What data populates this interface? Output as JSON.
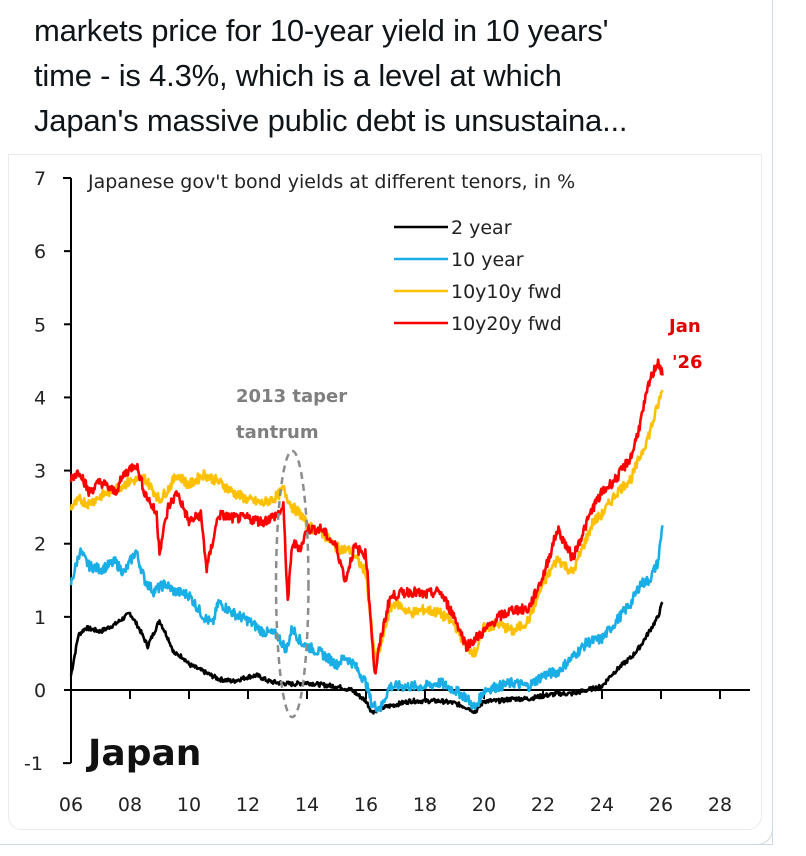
{
  "tweet": {
    "lines": [
      "markets price for 10-year yield in 10 years'",
      "time - is 4.3%, which is a level at which",
      "Japan's massive public debt is unsustaina..."
    ]
  },
  "chart_data": {
    "type": "line",
    "title": "Japanese gov't bond yields at different tenors, in %",
    "country_label": "Japan",
    "xlabel": "",
    "ylabel": "",
    "xlim": [
      2006,
      2028
    ],
    "ylim": [
      -1,
      7
    ],
    "x_ticks": [
      2006,
      2008,
      2010,
      2012,
      2014,
      2016,
      2018,
      2020,
      2022,
      2024,
      2026,
      2028
    ],
    "x_tick_labels": [
      "06",
      "08",
      "10",
      "12",
      "14",
      "16",
      "18",
      "20",
      "22",
      "24",
      "26",
      "28"
    ],
    "y_ticks": [
      -1,
      0,
      1,
      2,
      3,
      4,
      5,
      6,
      7
    ],
    "y_tick_labels": [
      "-1",
      "0",
      "1",
      "2",
      "3",
      "4",
      "5",
      "6",
      "7"
    ],
    "grid": false,
    "legend_position": "top-center",
    "annotations": [
      {
        "text": [
          "2013 taper",
          "tantrum"
        ],
        "x": 2013.5,
        "y": 3.9,
        "color": "#7f7f7f",
        "style": "dashed-ellipse",
        "ellipse_center": [
          2013.5,
          1.45
        ],
        "ellipse_radius_years": 0.55,
        "ellipse_radius_pct": 1.82
      },
      {
        "text": [
          "Jan",
          "'26"
        ],
        "x": 2026.3,
        "y": 4.6,
        "color": "#e00000"
      }
    ],
    "series": [
      {
        "name": "2 year",
        "color": "#000000",
        "x": [
          2006.0,
          2006.25,
          2006.5,
          2007.0,
          2007.5,
          2008.0,
          2008.3,
          2008.6,
          2009.0,
          2009.3,
          2009.5,
          2009.8,
          2010.0,
          2010.5,
          2011.0,
          2011.5,
          2012.0,
          2012.3,
          2012.7,
          2013.0,
          2013.5,
          2014.0,
          2014.5,
          2015.0,
          2015.5,
          2016.0,
          2016.2,
          2016.5,
          2017.0,
          2017.5,
          2018.0,
          2018.5,
          2019.0,
          2019.5,
          2019.7,
          2020.0,
          2020.5,
          2021.0,
          2021.5,
          2022.0,
          2022.5,
          2023.0,
          2023.5,
          2024.0,
          2024.3,
          2024.7,
          2025.0,
          2025.3,
          2025.6,
          2025.9,
          2026.05
        ],
        "values": [
          0.2,
          0.75,
          0.85,
          0.8,
          0.9,
          1.05,
          0.85,
          0.6,
          0.95,
          0.7,
          0.5,
          0.45,
          0.35,
          0.25,
          0.15,
          0.12,
          0.18,
          0.2,
          0.12,
          0.1,
          0.08,
          0.1,
          0.07,
          0.05,
          0.0,
          -0.15,
          -0.3,
          -0.25,
          -0.2,
          -0.15,
          -0.15,
          -0.15,
          -0.18,
          -0.25,
          -0.3,
          -0.15,
          -0.15,
          -0.12,
          -0.12,
          -0.08,
          -0.05,
          -0.05,
          0.0,
          0.05,
          0.2,
          0.35,
          0.45,
          0.6,
          0.8,
          1.0,
          1.2
        ]
      },
      {
        "name": "10 year",
        "color": "#1aaee6",
        "x": [
          2006.0,
          2006.3,
          2006.6,
          2007.0,
          2007.5,
          2007.8,
          2008.2,
          2008.5,
          2008.8,
          2009.2,
          2009.5,
          2010.0,
          2010.5,
          2010.8,
          2011.0,
          2011.5,
          2012.0,
          2012.5,
          2013.0,
          2013.3,
          2013.5,
          2013.8,
          2014.0,
          2014.5,
          2015.0,
          2015.3,
          2015.6,
          2016.0,
          2016.2,
          2016.5,
          2016.8,
          2017.0,
          2017.5,
          2018.0,
          2018.5,
          2019.0,
          2019.4,
          2019.7,
          2020.0,
          2020.5,
          2021.0,
          2021.5,
          2022.0,
          2022.5,
          2023.0,
          2023.5,
          2024.0,
          2024.5,
          2025.0,
          2025.3,
          2025.6,
          2025.9,
          2026.05
        ],
        "values": [
          1.45,
          1.9,
          1.7,
          1.65,
          1.75,
          1.6,
          1.9,
          1.5,
          1.35,
          1.45,
          1.35,
          1.3,
          1.0,
          0.9,
          1.2,
          1.05,
          0.95,
          0.8,
          0.75,
          0.55,
          0.85,
          0.65,
          0.6,
          0.5,
          0.35,
          0.45,
          0.35,
          0.1,
          -0.2,
          -0.25,
          0.05,
          0.05,
          0.05,
          0.05,
          0.1,
          0.0,
          -0.1,
          -0.25,
          0.0,
          0.05,
          0.1,
          0.05,
          0.2,
          0.25,
          0.45,
          0.65,
          0.7,
          0.95,
          1.2,
          1.45,
          1.5,
          1.75,
          2.25
        ]
      },
      {
        "name": "10y10y fwd",
        "color": "#ffc000",
        "x": [
          2006.0,
          2006.3,
          2006.6,
          2007.0,
          2007.5,
          2008.0,
          2008.5,
          2009.0,
          2009.3,
          2009.6,
          2010.0,
          2010.5,
          2011.0,
          2011.5,
          2012.0,
          2012.5,
          2013.0,
          2013.2,
          2013.5,
          2013.8,
          2014.0,
          2014.5,
          2015.0,
          2015.5,
          2016.0,
          2016.3,
          2016.5,
          2016.8,
          2017.0,
          2017.5,
          2018.0,
          2018.5,
          2019.0,
          2019.4,
          2019.7,
          2020.0,
          2020.5,
          2021.0,
          2021.5,
          2022.0,
          2022.5,
          2023.0,
          2023.3,
          2023.7,
          2024.0,
          2024.5,
          2025.0,
          2025.3,
          2025.6,
          2025.9,
          2026.05
        ],
        "values": [
          2.5,
          2.6,
          2.55,
          2.65,
          2.75,
          2.85,
          2.9,
          2.6,
          2.75,
          2.95,
          2.8,
          2.95,
          2.85,
          2.7,
          2.6,
          2.55,
          2.65,
          2.75,
          2.5,
          2.4,
          2.25,
          2.15,
          1.95,
          1.9,
          1.6,
          0.4,
          0.6,
          1.1,
          1.2,
          1.05,
          1.1,
          1.05,
          0.9,
          0.6,
          0.5,
          0.85,
          0.9,
          0.8,
          0.95,
          1.45,
          1.8,
          1.6,
          1.9,
          2.3,
          2.4,
          2.7,
          2.9,
          3.2,
          3.5,
          3.9,
          4.1
        ]
      },
      {
        "name": "10y20y fwd",
        "color": "#ff0000",
        "x": [
          2006.0,
          2006.3,
          2006.6,
          2007.0,
          2007.5,
          2007.8,
          2008.2,
          2008.5,
          2008.9,
          2009.0,
          2009.3,
          2009.6,
          2010.0,
          2010.4,
          2010.6,
          2011.0,
          2011.5,
          2012.0,
          2012.5,
          2013.0,
          2013.2,
          2013.35,
          2013.5,
          2013.8,
          2014.0,
          2014.5,
          2015.0,
          2015.3,
          2015.6,
          2016.0,
          2016.3,
          2016.5,
          2016.8,
          2017.0,
          2017.5,
          2018.0,
          2018.5,
          2019.0,
          2019.4,
          2019.7,
          2020.0,
          2020.5,
          2021.0,
          2021.5,
          2022.0,
          2022.5,
          2023.0,
          2023.3,
          2023.7,
          2024.0,
          2024.5,
          2025.0,
          2025.3,
          2025.6,
          2025.9,
          2026.05
        ],
        "values": [
          2.9,
          3.0,
          2.7,
          2.85,
          2.7,
          2.95,
          3.1,
          2.7,
          2.4,
          1.9,
          2.5,
          2.7,
          2.3,
          2.4,
          1.65,
          2.4,
          2.35,
          2.35,
          2.3,
          2.4,
          2.5,
          1.2,
          2.0,
          1.95,
          2.2,
          2.2,
          1.95,
          1.5,
          1.95,
          1.85,
          0.2,
          0.7,
          1.25,
          1.3,
          1.35,
          1.3,
          1.35,
          1.0,
          0.6,
          0.7,
          0.8,
          1.0,
          1.1,
          1.1,
          1.55,
          2.2,
          1.8,
          2.1,
          2.5,
          2.7,
          2.9,
          3.2,
          3.65,
          4.2,
          4.5,
          4.3
        ]
      }
    ]
  }
}
